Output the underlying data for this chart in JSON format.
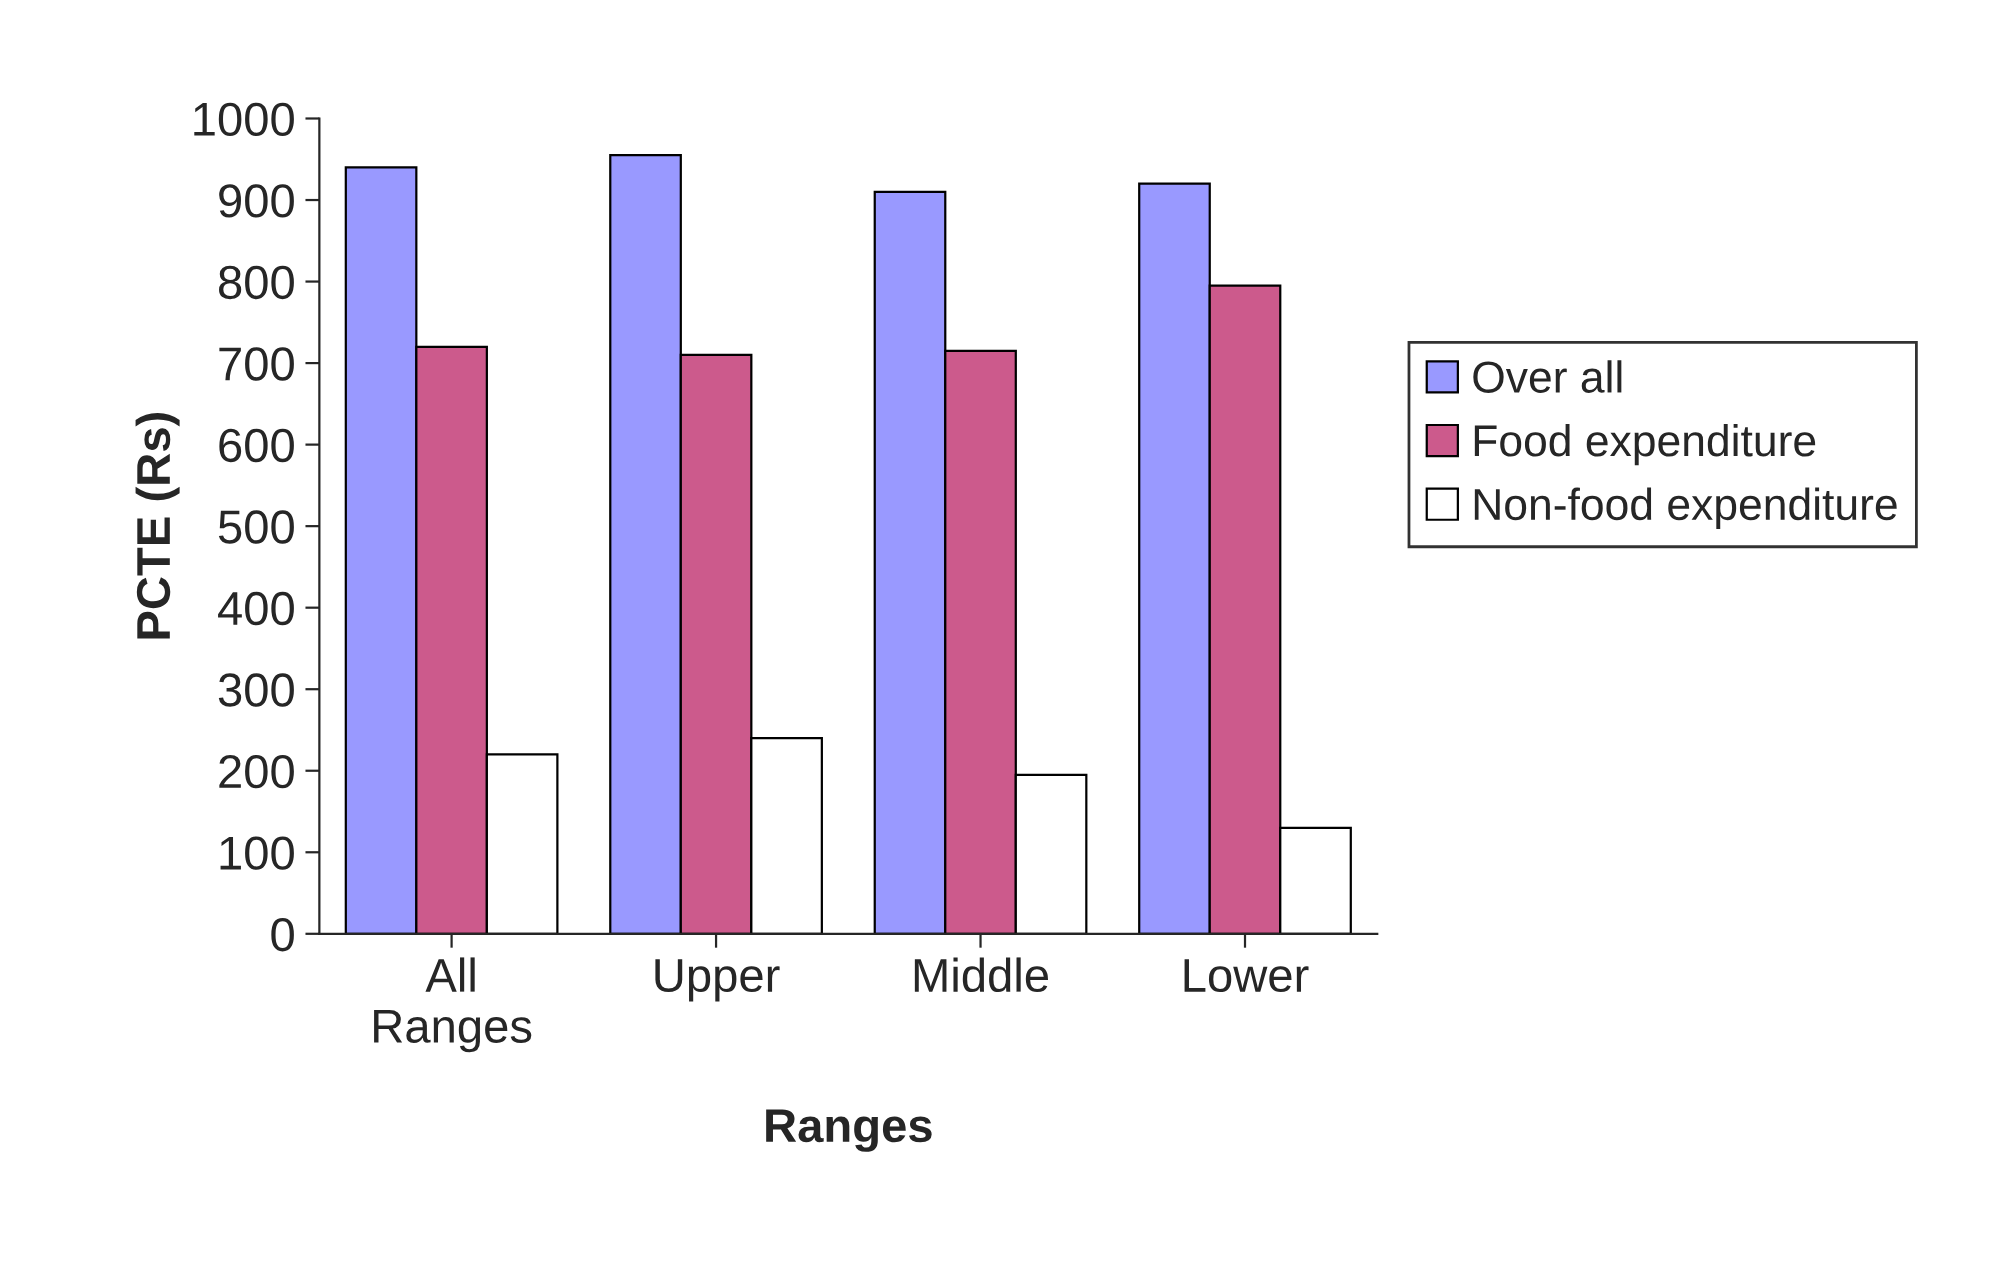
{
  "chart_data": {
    "type": "bar",
    "xlabel": "Ranges",
    "ylabel": "PCTE (Rs)",
    "categories": [
      "All\nRanges",
      "Upper",
      "Middle",
      "Lower"
    ],
    "series": [
      {
        "name": "Over all",
        "color": "#9999ff",
        "values": [
          940,
          955,
          910,
          920
        ]
      },
      {
        "name": "Food expenditure",
        "color": "#cc5a8c",
        "values": [
          720,
          710,
          715,
          795
        ]
      },
      {
        "name": "Non-food expenditure",
        "color": "#ffffff",
        "values": [
          220,
          240,
          195,
          130
        ]
      }
    ],
    "ylim": [
      0,
      1000
    ],
    "yticks": [
      0,
      100,
      200,
      300,
      400,
      500,
      600,
      700,
      800,
      900,
      1000
    ],
    "grid": false,
    "legend": "right"
  }
}
